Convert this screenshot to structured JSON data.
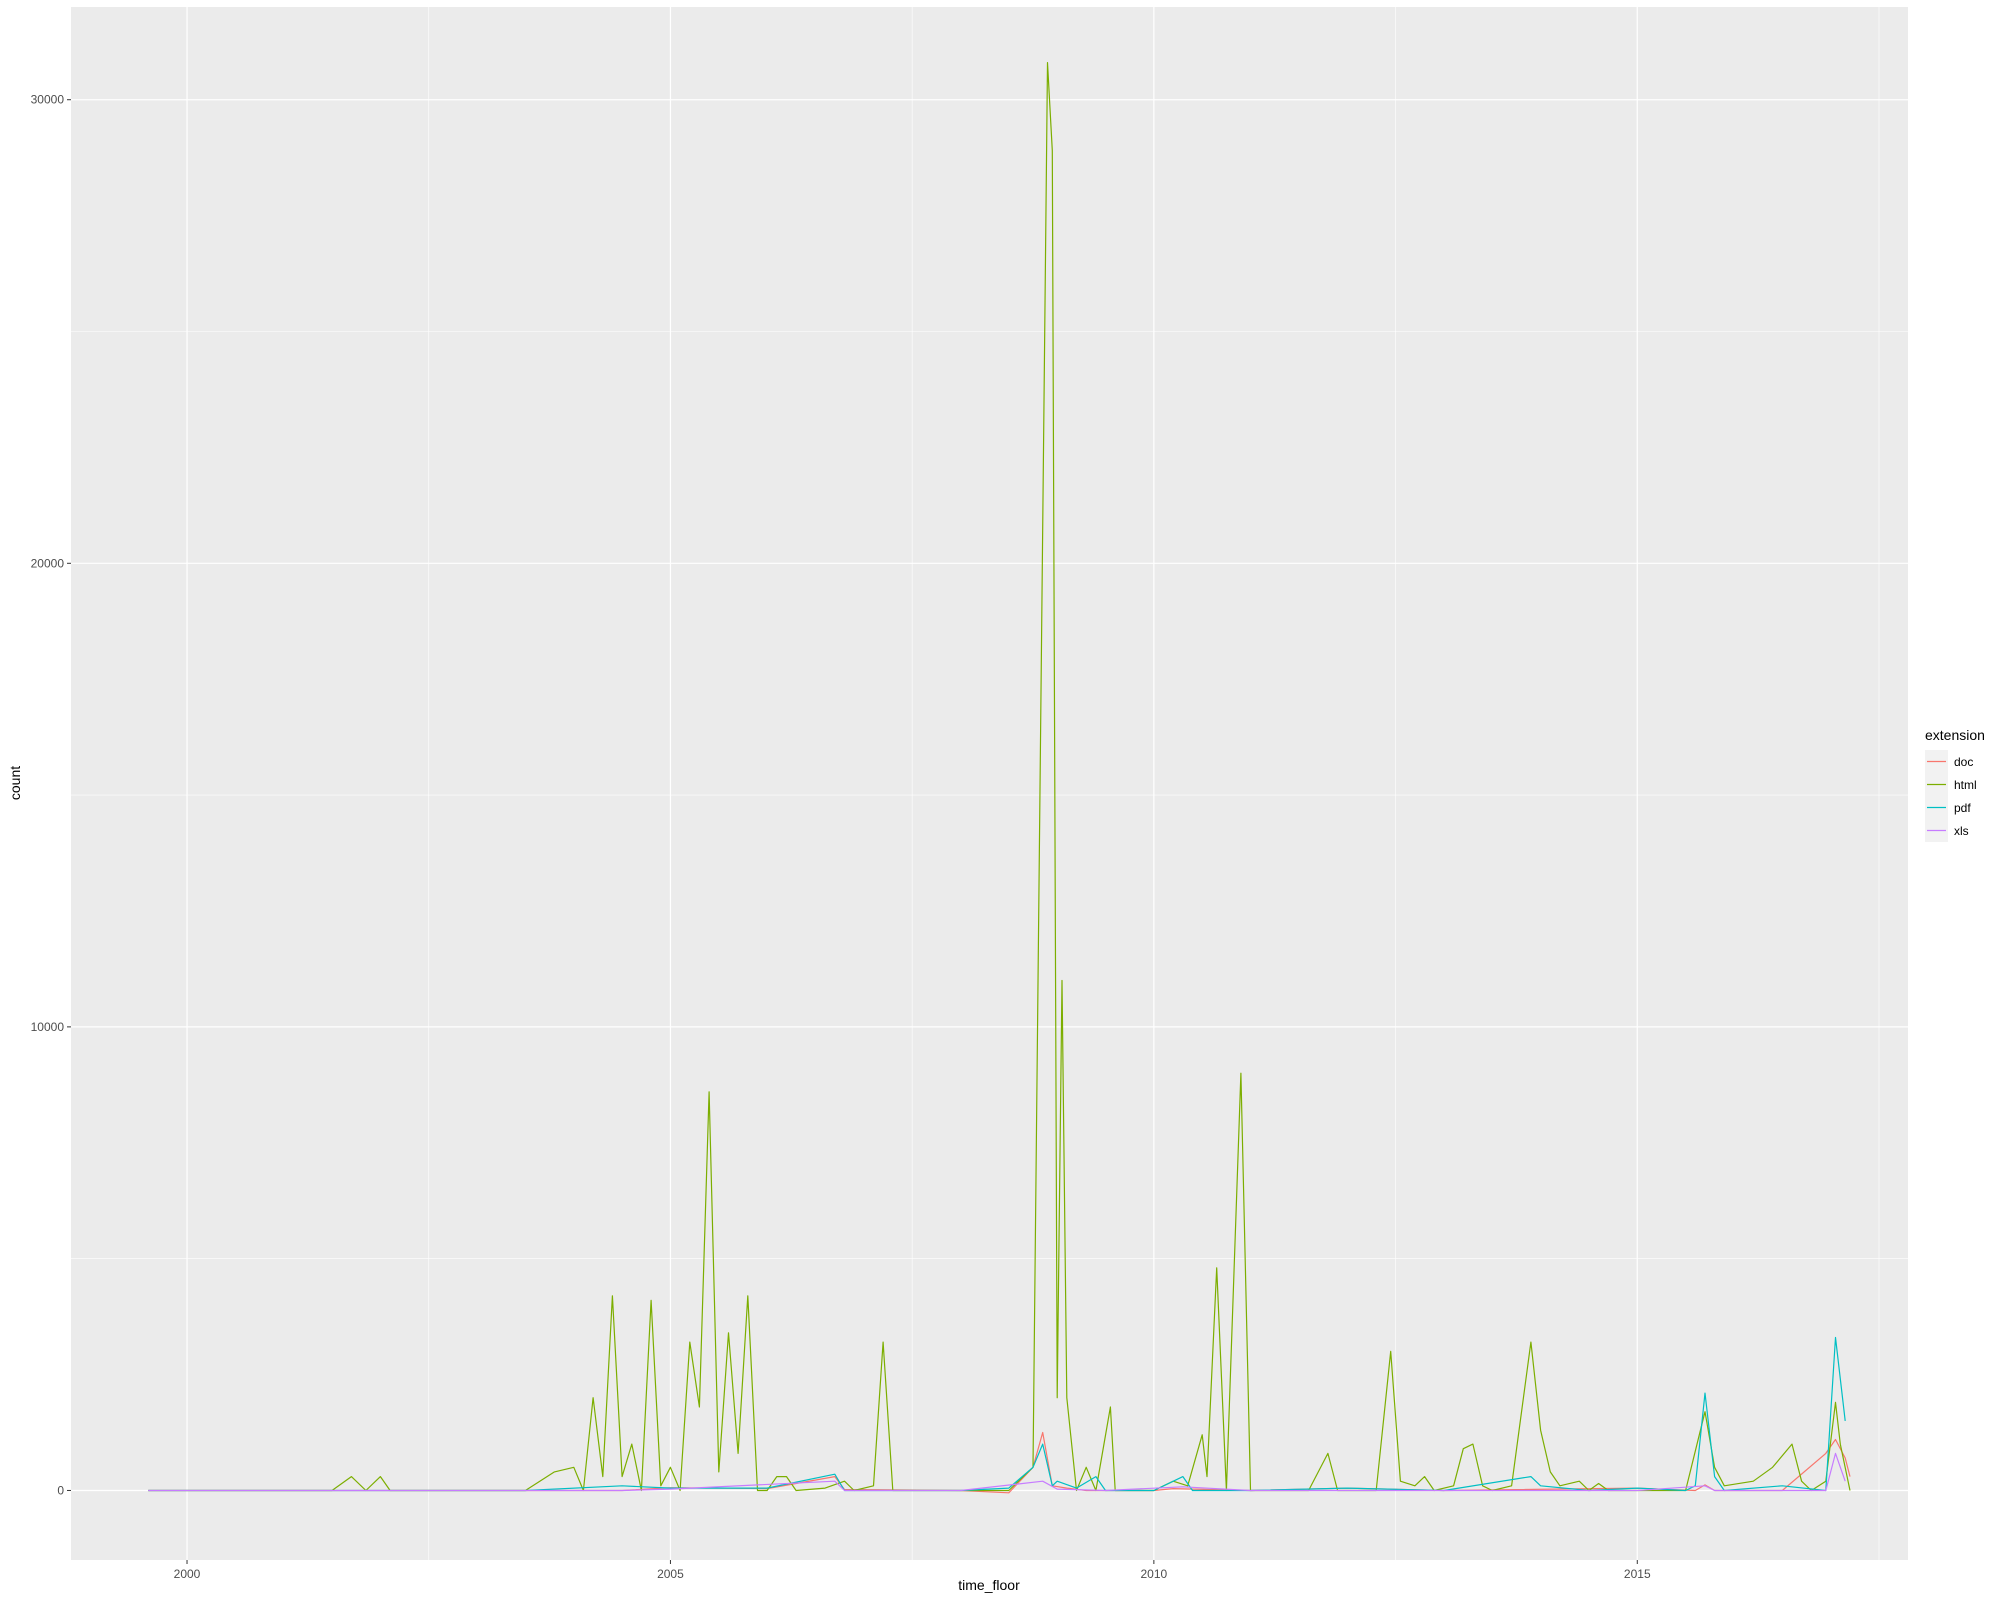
{
  "chart_data": {
    "type": "line",
    "title": "",
    "xlabel": "time_floor",
    "ylabel": "count",
    "xlim": [
      1998.8,
      2017.8
    ],
    "ylim": [
      -1500,
      32000
    ],
    "x_ticks": [
      2000,
      2005,
      2010,
      2015
    ],
    "x_tick_labels": [
      "2000",
      "2005",
      "2010",
      "2015"
    ],
    "y_ticks": [
      0,
      10000,
      20000,
      30000
    ],
    "y_tick_labels": [
      "0",
      "10000",
      "20000",
      "30000"
    ],
    "grid": true,
    "legend": {
      "title": "extension",
      "position": "right"
    },
    "series": [
      {
        "name": "doc",
        "color": "#F8766D",
        "points": [
          [
            1999.6,
            0
          ],
          [
            2003.5,
            0
          ],
          [
            2004.5,
            0
          ],
          [
            2005.0,
            60
          ],
          [
            2006.0,
            40
          ],
          [
            2006.7,
            300
          ],
          [
            2006.8,
            20
          ],
          [
            2008.0,
            0
          ],
          [
            2008.5,
            -50
          ],
          [
            2008.75,
            500
          ],
          [
            2008.85,
            1250
          ],
          [
            2008.95,
            100
          ],
          [
            2009.1,
            50
          ],
          [
            2009.3,
            0
          ],
          [
            2010.0,
            0
          ],
          [
            2010.2,
            40
          ],
          [
            2011.0,
            0
          ],
          [
            2012.0,
            50
          ],
          [
            2013.0,
            0
          ],
          [
            2015.0,
            50
          ],
          [
            2015.6,
            0
          ],
          [
            2015.7,
            120
          ],
          [
            2015.8,
            0
          ],
          [
            2016.5,
            0
          ],
          [
            2016.95,
            800
          ],
          [
            2017.05,
            1100
          ],
          [
            2017.15,
            700
          ],
          [
            2017.2,
            300
          ]
        ]
      },
      {
        "name": "html",
        "color": "#7CAE00",
        "points": [
          [
            1999.6,
            0
          ],
          [
            2001.5,
            0
          ],
          [
            2001.7,
            300
          ],
          [
            2001.85,
            0
          ],
          [
            2002.0,
            300
          ],
          [
            2002.1,
            0
          ],
          [
            2003.5,
            0
          ],
          [
            2003.8,
            400
          ],
          [
            2004.0,
            500
          ],
          [
            2004.1,
            0
          ],
          [
            2004.2,
            2000
          ],
          [
            2004.3,
            300
          ],
          [
            2004.4,
            4200
          ],
          [
            2004.5,
            300
          ],
          [
            2004.6,
            1000
          ],
          [
            2004.7,
            0
          ],
          [
            2004.8,
            4100
          ],
          [
            2004.9,
            100
          ],
          [
            2005.0,
            500
          ],
          [
            2005.1,
            0
          ],
          [
            2005.2,
            3200
          ],
          [
            2005.3,
            1800
          ],
          [
            2005.4,
            8600
          ],
          [
            2005.5,
            400
          ],
          [
            2005.6,
            3400
          ],
          [
            2005.7,
            800
          ],
          [
            2005.8,
            4200
          ],
          [
            2005.9,
            0
          ],
          [
            2006.0,
            0
          ],
          [
            2006.1,
            300
          ],
          [
            2006.2,
            300
          ],
          [
            2006.3,
            0
          ],
          [
            2006.6,
            50
          ],
          [
            2006.8,
            200
          ],
          [
            2006.9,
            0
          ],
          [
            2007.1,
            100
          ],
          [
            2007.2,
            3200
          ],
          [
            2007.3,
            0
          ],
          [
            2008.0,
            0
          ],
          [
            2008.5,
            0
          ],
          [
            2008.75,
            500
          ],
          [
            2008.9,
            30800
          ],
          [
            2008.95,
            28900
          ],
          [
            2009.0,
            2000
          ],
          [
            2009.05,
            11000
          ],
          [
            2009.1,
            2000
          ],
          [
            2009.2,
            0
          ],
          [
            2009.3,
            500
          ],
          [
            2009.4,
            0
          ],
          [
            2009.55,
            1800
          ],
          [
            2009.6,
            0
          ],
          [
            2010.0,
            0
          ],
          [
            2010.2,
            200
          ],
          [
            2010.35,
            100
          ],
          [
            2010.5,
            1200
          ],
          [
            2010.55,
            300
          ],
          [
            2010.65,
            4800
          ],
          [
            2010.75,
            0
          ],
          [
            2010.9,
            9000
          ],
          [
            2011.0,
            0
          ],
          [
            2011.6,
            0
          ],
          [
            2011.8,
            800
          ],
          [
            2011.9,
            0
          ],
          [
            2012.3,
            0
          ],
          [
            2012.45,
            3000
          ],
          [
            2012.55,
            200
          ],
          [
            2012.7,
            100
          ],
          [
            2012.8,
            300
          ],
          [
            2012.9,
            0
          ],
          [
            2013.1,
            100
          ],
          [
            2013.2,
            900
          ],
          [
            2013.3,
            1000
          ],
          [
            2013.4,
            100
          ],
          [
            2013.5,
            0
          ],
          [
            2013.7,
            100
          ],
          [
            2013.9,
            3200
          ],
          [
            2014.0,
            1300
          ],
          [
            2014.1,
            400
          ],
          [
            2014.2,
            100
          ],
          [
            2014.4,
            200
          ],
          [
            2014.5,
            0
          ],
          [
            2014.6,
            150
          ],
          [
            2014.7,
            0
          ],
          [
            2015.0,
            0
          ],
          [
            2015.5,
            0
          ],
          [
            2015.7,
            1700
          ],
          [
            2015.8,
            500
          ],
          [
            2015.9,
            100
          ],
          [
            2016.2,
            200
          ],
          [
            2016.4,
            500
          ],
          [
            2016.6,
            1000
          ],
          [
            2016.7,
            200
          ],
          [
            2016.8,
            0
          ],
          [
            2016.95,
            200
          ],
          [
            2017.05,
            1900
          ],
          [
            2017.1,
            1000
          ],
          [
            2017.2,
            0
          ]
        ]
      },
      {
        "name": "pdf",
        "color": "#00BFC4",
        "points": [
          [
            1999.6,
            0
          ],
          [
            2003.5,
            0
          ],
          [
            2004.5,
            100
          ],
          [
            2005.0,
            50
          ],
          [
            2006.0,
            50
          ],
          [
            2006.7,
            350
          ],
          [
            2006.8,
            0
          ],
          [
            2008.0,
            0
          ],
          [
            2008.5,
            50
          ],
          [
            2008.75,
            500
          ],
          [
            2008.85,
            1000
          ],
          [
            2008.95,
            100
          ],
          [
            2009.0,
            200
          ],
          [
            2009.2,
            50
          ],
          [
            2009.4,
            300
          ],
          [
            2009.5,
            0
          ],
          [
            2010.0,
            0
          ],
          [
            2010.3,
            300
          ],
          [
            2010.4,
            0
          ],
          [
            2011.0,
            0
          ],
          [
            2012.0,
            50
          ],
          [
            2013.0,
            0
          ],
          [
            2013.9,
            300
          ],
          [
            2014.0,
            100
          ],
          [
            2014.5,
            0
          ],
          [
            2015.0,
            50
          ],
          [
            2015.5,
            0
          ],
          [
            2015.6,
            100
          ],
          [
            2015.7,
            2100
          ],
          [
            2015.8,
            300
          ],
          [
            2015.9,
            0
          ],
          [
            2016.5,
            100
          ],
          [
            2016.95,
            0
          ],
          [
            2017.05,
            3300
          ],
          [
            2017.15,
            1500
          ]
        ]
      },
      {
        "name": "xls",
        "color": "#C77CFF",
        "points": [
          [
            1999.6,
            0
          ],
          [
            2004.5,
            0
          ],
          [
            2005.0,
            30
          ],
          [
            2006.7,
            200
          ],
          [
            2006.8,
            0
          ],
          [
            2008.0,
            0
          ],
          [
            2008.85,
            200
          ],
          [
            2009.0,
            30
          ],
          [
            2009.5,
            0
          ],
          [
            2010.3,
            80
          ],
          [
            2011.0,
            0
          ],
          [
            2015.0,
            0
          ],
          [
            2015.7,
            100
          ],
          [
            2015.8,
            0
          ],
          [
            2016.95,
            0
          ],
          [
            2017.05,
            800
          ],
          [
            2017.15,
            200
          ]
        ]
      }
    ]
  }
}
